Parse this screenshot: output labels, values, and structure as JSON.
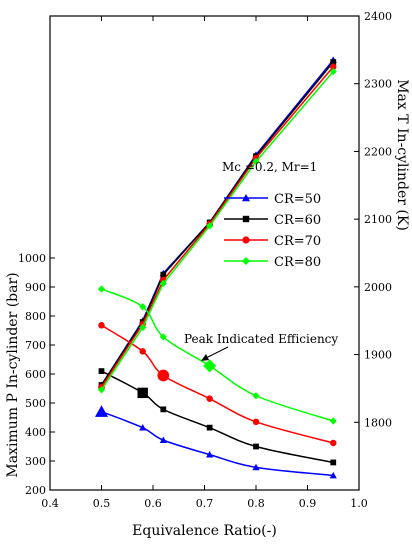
{
  "chart_data": {
    "type": "line",
    "x_axis": {
      "label": "Equivalence Ratio(-)",
      "range": [
        0.4,
        1.0
      ],
      "ticks": [
        "0.4",
        "0.5",
        "0.6",
        "0.7",
        "0.8",
        "0.9",
        "1.0"
      ]
    },
    "y_left": {
      "label": "Maximum P In-cylinder (bar)",
      "range": [
        200,
        1000
      ],
      "ticks": [
        "200",
        "300",
        "400",
        "500",
        "600",
        "700",
        "800",
        "900",
        "1000"
      ]
    },
    "y_right": {
      "label": "Max T In-cylinder (K)",
      "range": [
        1700,
        2400
      ],
      "ticks": [
        "1800",
        "1900",
        "2000",
        "2100",
        "2200",
        "2300",
        "2400"
      ]
    },
    "annotation_params": "Mc =0.2, Mr=1",
    "annotation_peak": "Peak Indicated Efficiency",
    "legend_position": "center-right",
    "x": [
      0.5,
      0.58,
      0.62,
      0.71,
      0.8,
      0.95
    ],
    "series": [
      {
        "name": "CR=50",
        "color": "#0000ff",
        "marker": "triangle",
        "pressure": [
          470,
          415,
          372,
          322,
          278,
          250
        ],
        "temperature": [
          1855,
          1950,
          2020,
          2095,
          2195,
          2335
        ],
        "peak_index": 0
      },
      {
        "name": "CR=60",
        "color": "#000000",
        "marker": "square",
        "pressure": [
          610,
          535,
          478,
          415,
          350,
          295
        ],
        "temperature": [
          1855,
          1948,
          2018,
          2095,
          2193,
          2332
        ],
        "peak_index": 1
      },
      {
        "name": "CR=70",
        "color": "#ff0000",
        "marker": "circle",
        "pressure": [
          768,
          678,
          595,
          515,
          435,
          362
        ],
        "temperature": [
          1852,
          1945,
          2010,
          2093,
          2190,
          2325
        ],
        "peak_index": 2
      },
      {
        "name": "CR=80",
        "color": "#00ff00",
        "marker": "diamond",
        "pressure": [
          893,
          832,
          728,
          628,
          525,
          438
        ],
        "temperature": [
          1848,
          1940,
          2005,
          2090,
          2185,
          2318
        ],
        "peak_index": 3
      }
    ]
  }
}
